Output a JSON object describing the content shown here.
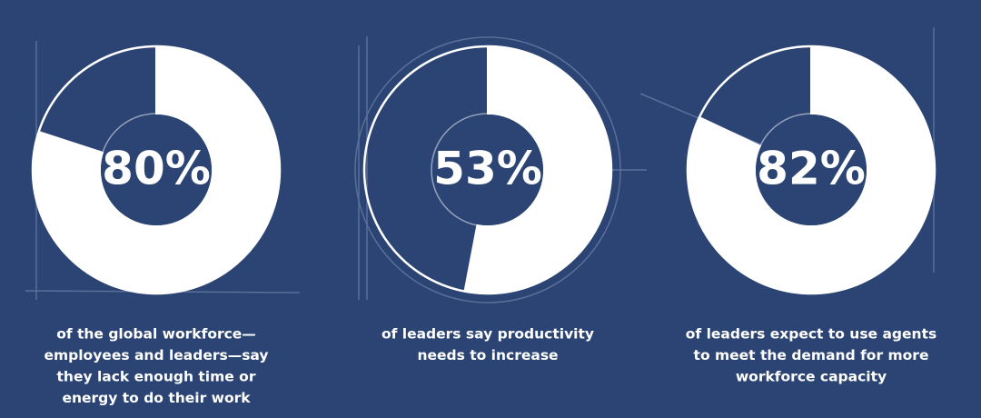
{
  "chart_data": [
    {
      "type": "donut",
      "values": [
        80
      ],
      "value_labels": [
        "80%"
      ],
      "color": "#ffffff",
      "caption": [
        "of the global workforce—",
        "employees and leaders—say",
        "they lack enough time or",
        "energy to do their work"
      ]
    },
    {
      "type": "donut",
      "values": [
        53
      ],
      "value_labels": [
        "53%"
      ],
      "color": "#ffffff",
      "caption": [
        "of leaders say productivity",
        "needs to increase"
      ]
    },
    {
      "type": "donut",
      "values": [
        82
      ],
      "value_labels": [
        "82%"
      ],
      "color": "#ffffff",
      "caption": [
        "of leaders expect to use agents",
        "to meet the demand for more",
        "workforce capacity"
      ]
    }
  ]
}
